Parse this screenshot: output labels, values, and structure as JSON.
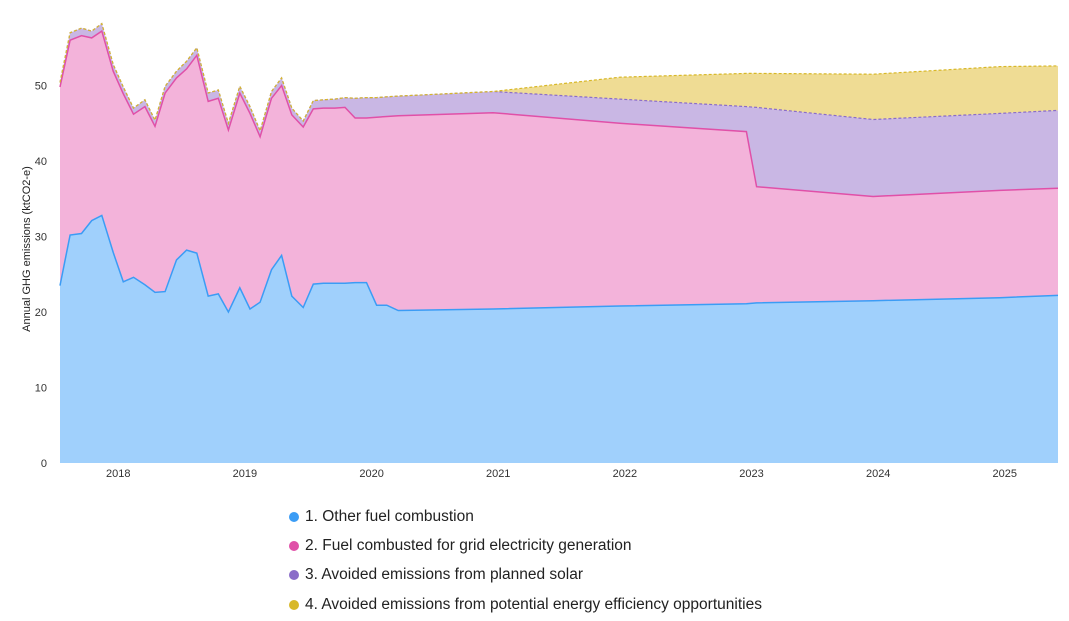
{
  "chart_data": {
    "type": "area",
    "stacked": true,
    "ylabel": "Annual GHG emissions (ktCO2-e)",
    "xlabel": "",
    "x_ticks": [
      "2018",
      "2019",
      "2020",
      "2021",
      "2022",
      "2023",
      "2024",
      "2025"
    ],
    "y_ticks": [
      "0",
      "10",
      "20",
      "30",
      "40",
      "50"
    ],
    "xlim": [
      2017.54,
      2025.42
    ],
    "ylim": [
      0,
      60
    ],
    "grid": false,
    "legend_position": "bottom",
    "x": [
      2017.54,
      2017.62,
      2017.71,
      2017.79,
      2017.87,
      2017.96,
      2018.04,
      2018.12,
      2018.21,
      2018.29,
      2018.37,
      2018.46,
      2018.54,
      2018.62,
      2018.71,
      2018.79,
      2018.87,
      2018.96,
      2019.04,
      2019.12,
      2019.21,
      2019.29,
      2019.37,
      2019.46,
      2019.54,
      2019.62,
      2019.71,
      2019.79,
      2019.87,
      2019.96,
      2020.04,
      2020.12,
      2020.21,
      2020.96,
      2021.96,
      2022.96,
      2023.04,
      2023.96,
      2024.96,
      2025.42
    ],
    "series": [
      {
        "name": "1. Other fuel combustion",
        "color": "#3b9cf5",
        "fill": "#a0d0fc",
        "values": [
          23.5,
          30.2,
          30.4,
          32.1,
          32.8,
          27.9,
          24.0,
          24.6,
          23.6,
          22.6,
          22.7,
          26.9,
          28.2,
          27.8,
          22.1,
          22.4,
          20.0,
          23.2,
          20.4,
          21.3,
          25.6,
          27.5,
          22.1,
          20.6,
          23.7,
          23.8,
          23.8,
          23.8,
          23.9,
          23.9,
          20.9,
          20.9,
          20.2,
          20.4,
          20.8,
          21.1,
          21.2,
          21.5,
          21.9,
          22.2
        ]
      },
      {
        "name": "2. Fuel combusted for grid electricity generation",
        "color": "#e050a8",
        "fill": "#f3b3da",
        "values": [
          26.3,
          25.8,
          26.2,
          24.2,
          24.4,
          24.0,
          24.9,
          21.6,
          23.6,
          22.0,
          26.3,
          24.1,
          24.0,
          26.2,
          25.8,
          25.9,
          24.1,
          25.8,
          25.9,
          21.9,
          22.7,
          22.5,
          24.0,
          23.9,
          23.2,
          23.2,
          23.2,
          23.3,
          21.8,
          21.8,
          24.9,
          25.0,
          25.8,
          26.0,
          24.2,
          22.8,
          15.4,
          13.8,
          14.2,
          14.2
        ]
      },
      {
        "name": "3. Avoided emissions from planned solar",
        "color": "#8a6cc8",
        "fill": "#c9b7e4",
        "values": [
          0.6,
          1.0,
          1.0,
          0.9,
          1.0,
          0.9,
          0.9,
          0.8,
          0.9,
          0.8,
          0.9,
          0.9,
          1.0,
          1.0,
          1.1,
          1.1,
          0.9,
          0.9,
          0.9,
          0.8,
          0.9,
          1.0,
          0.9,
          0.8,
          1.1,
          1.1,
          1.2,
          1.3,
          2.6,
          2.7,
          2.6,
          2.6,
          2.6,
          2.8,
          3.2,
          3.3,
          10.5,
          10.2,
          10.2,
          10.3
        ]
      },
      {
        "name": "4. Avoided emissions from potential energy efficiency opportunities",
        "color": "#d8b828",
        "fill": "#efdc94",
        "values": [
          0,
          0,
          0,
          0,
          0,
          0,
          0,
          0,
          0,
          0,
          0,
          0,
          0,
          0,
          0,
          0,
          0,
          0,
          0,
          0,
          0,
          0,
          0,
          0,
          0,
          0,
          0,
          0,
          0,
          0,
          0,
          0,
          0,
          0,
          2.9,
          4.4,
          4.5,
          6.0,
          6.2,
          5.9
        ]
      }
    ]
  }
}
